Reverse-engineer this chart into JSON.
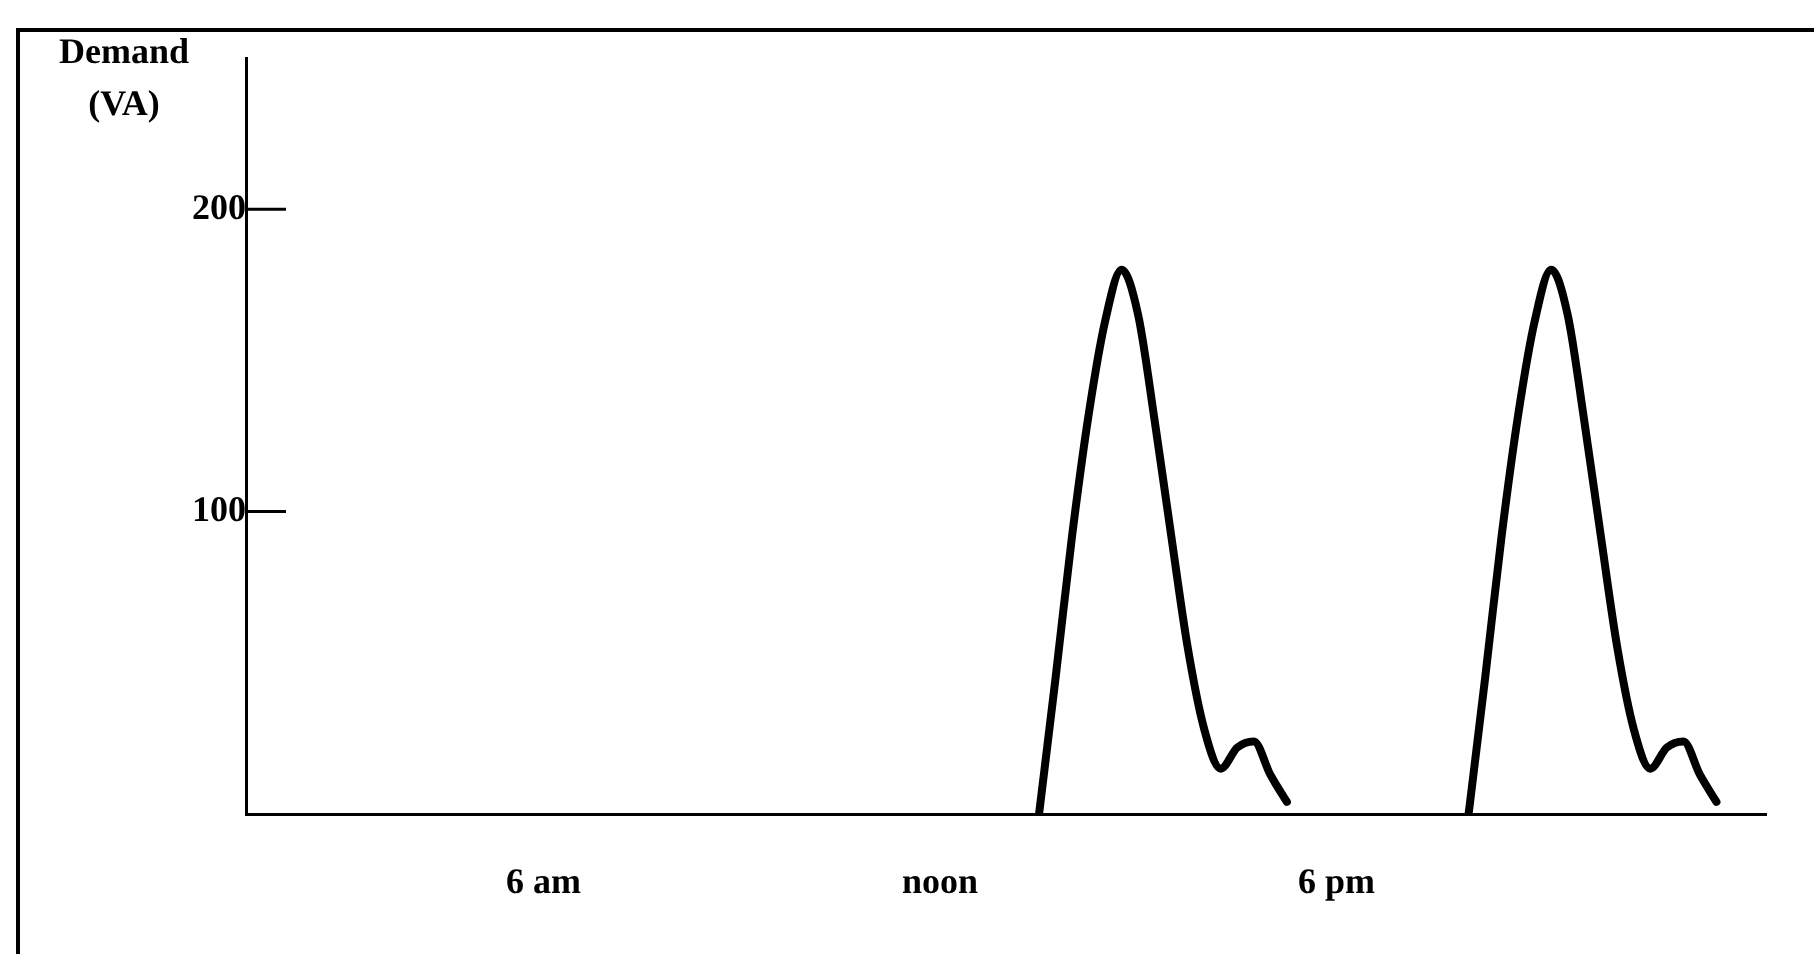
{
  "chart_data": {
    "type": "line",
    "ylabel": "Demand (VA)",
    "categories": [
      null,
      null,
      null,
      null,
      null,
      null,
      null,
      null,
      null,
      null,
      null,
      null,
      null,
      null,
      null,
      null,
      null,
      null,
      "6 am",
      null,
      null,
      null,
      null,
      null,
      null,
      null,
      null,
      null,
      null,
      null,
      null,
      null,
      null,
      null,
      null,
      null,
      null,
      null,
      null,
      null,
      null,
      null,
      "noon",
      null,
      null,
      null,
      null,
      null,
      null,
      null,
      null,
      null,
      null,
      null,
      null,
      null,
      null,
      null,
      null,
      null,
      null,
      null,
      null,
      null,
      null,
      null,
      "6 pm",
      null,
      null,
      null,
      null,
      null,
      null,
      null,
      null,
      null,
      null,
      null,
      null,
      null,
      null,
      null,
      null,
      null,
      null,
      null,
      null,
      null,
      null,
      null,
      null,
      null,
      null
    ],
    "series": [
      {
        "color": "#000000",
        "values": [
          null,
          null,
          null,
          null,
          null,
          null,
          null,
          null,
          null,
          null,
          null,
          null,
          null,
          null,
          null,
          null,
          null,
          null,
          null,
          null,
          null,
          null,
          null,
          null,
          null,
          null,
          null,
          null,
          null,
          null,
          null,
          null,
          null,
          null,
          null,
          null,
          null,
          null,
          null,
          null,
          null,
          null,
          null,
          null,
          null,
          null,
          null,
          null,
          0,
          45,
          92,
          132,
          163,
          180,
          165,
          130,
          92,
          55,
          28,
          15,
          22,
          24,
          13,
          4,
          null,
          null,
          null,
          null,
          null,
          null,
          null,
          null,
          null,
          null,
          0,
          45,
          92,
          132,
          163,
          180,
          165,
          130,
          92,
          55,
          28,
          15,
          22,
          24,
          13,
          4,
          null,
          null,
          null
        ]
      }
    ],
    "ylim": [
      0,
      250
    ],
    "yticks": [
      100,
      200
    ],
    "grid": false,
    "legend": false,
    "marker": "none",
    "line_style": "solid"
  }
}
